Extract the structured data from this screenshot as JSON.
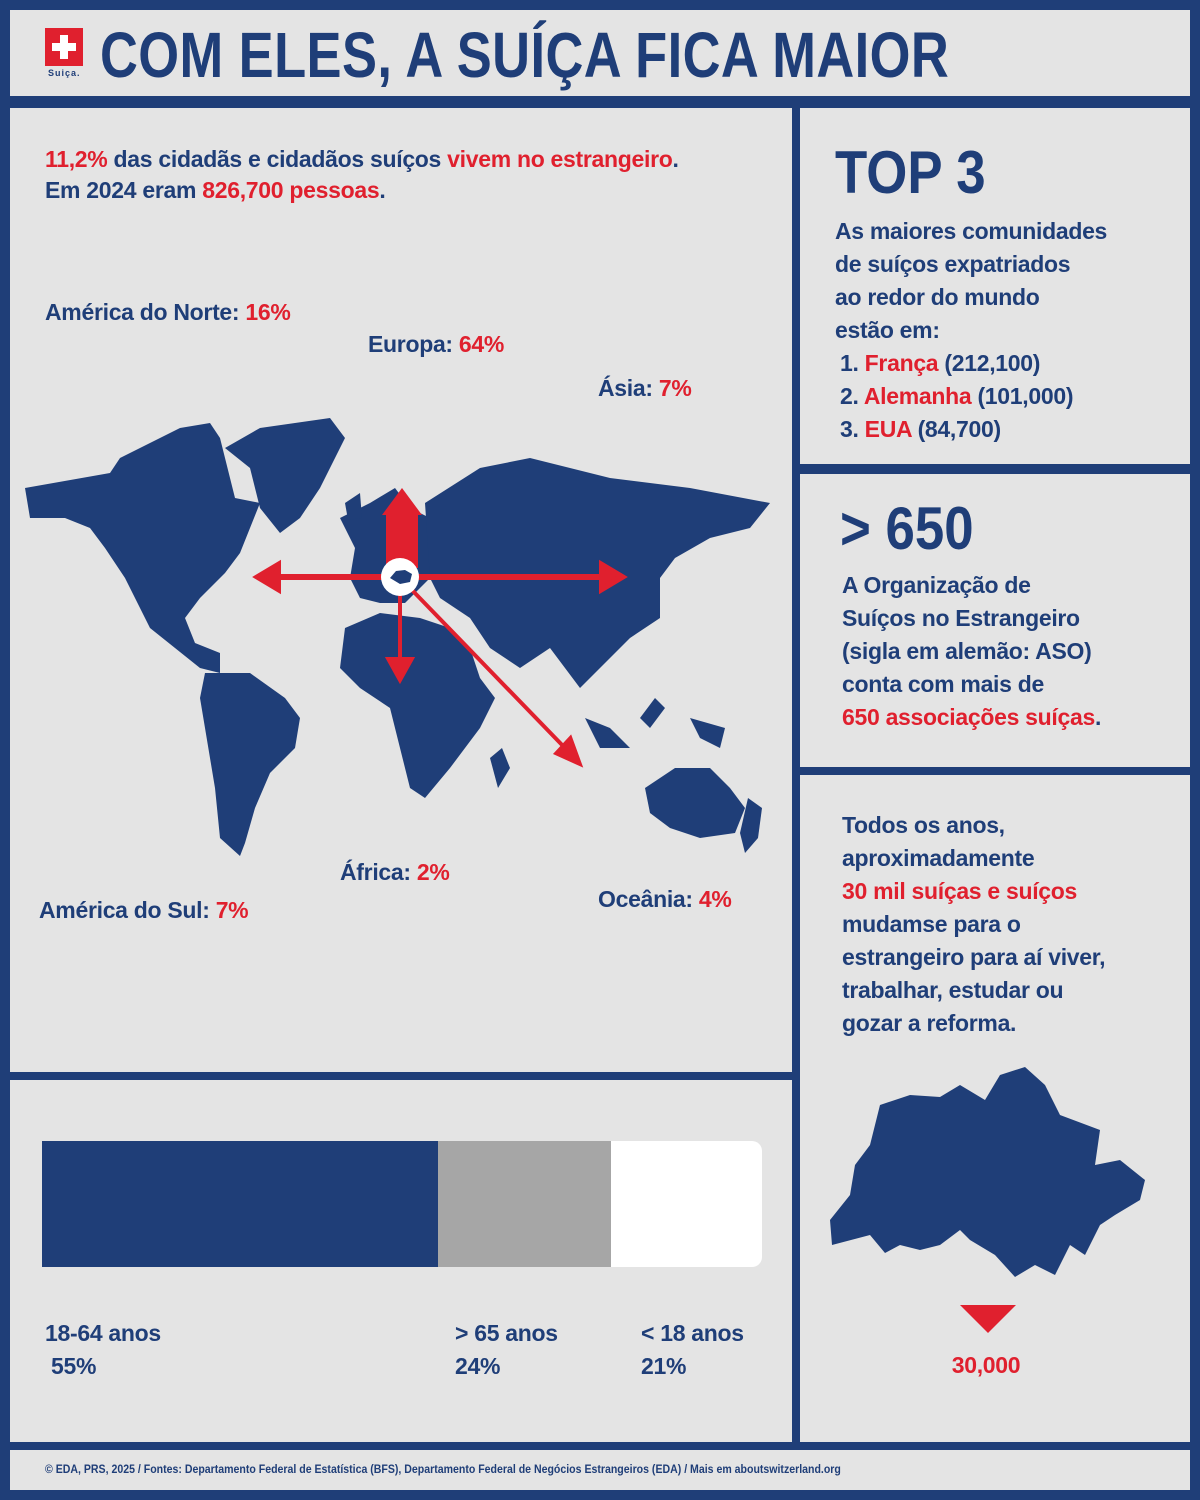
{
  "header": {
    "flag_label": "Suiça.",
    "title": "COM ELES, A SUÍÇA FICA MAIOR"
  },
  "intro": {
    "pct": "11,2%",
    "text1": " das cidadãs e cidadãos suíços ",
    "highlight": "vivem no estrangeiro",
    "end": ".",
    "text2": "Em 2024 eram ",
    "count": "826,700 pessoas",
    "end2": "."
  },
  "regions": [
    {
      "name": "América do Norte: ",
      "value": "16%"
    },
    {
      "name": "Europa: ",
      "value": "64%"
    },
    {
      "name": "Ásia: ",
      "value": "7%"
    },
    {
      "name": "África: ",
      "value": "2%"
    },
    {
      "name": "América do Sul: ",
      "value": "7%"
    },
    {
      "name": "Oceânia: ",
      "value": "4%"
    }
  ],
  "age": {
    "segments": [
      {
        "label": "18-64 anos",
        "value": "55%",
        "fraction": 0.55,
        "color": "#1f3e78"
      },
      {
        "label": "> 65 anos",
        "value": "24%",
        "fraction": 0.24,
        "color": "#a6a6a6"
      },
      {
        "label": "< 18 anos",
        "value": "21%",
        "fraction": 0.21,
        "color": "#ffffff"
      }
    ]
  },
  "top3": {
    "title": "TOP 3",
    "desc": [
      "As maiores comunidades",
      "de suíços expatriados",
      "ao redor do mundo",
      "estão em:"
    ],
    "items": [
      {
        "num": "1. ",
        "country": "França",
        "count": " (212,100)"
      },
      {
        "num": "2. ",
        "country": "Alemanha",
        "count": " (101,000)"
      },
      {
        "num": "3. ",
        "country": "EUA",
        "count": " (84,700)"
      }
    ]
  },
  "aso": {
    "title": "> 650",
    "lines": [
      "A Organização de",
      "Suíços no Estrangeiro",
      "(sigla em alemão: ASO)",
      "conta com mais de"
    ],
    "highlight": "650 associações suíças",
    "end": "."
  },
  "yearly": {
    "lines1": [
      "Todos os anos,",
      "aproximadamente"
    ],
    "highlight": "30 mil suíças e suíços",
    "lines2": [
      "mudamse para o",
      "estrangeiro para aí viver,",
      "trabalhar, estudar ou",
      "gozar a reforma."
    ],
    "value": "30,000"
  },
  "footer": "© EDA, PRS, 2025 / Fontes: Departamento Federal de Estatística (BFS), Departamento Federal de Negócios Estrangeiros (EDA) / Mais em aboutswitzerland.org",
  "colors": {
    "navy": "#1f3e78",
    "red": "#e0202e",
    "background": "#e4e4e4"
  }
}
